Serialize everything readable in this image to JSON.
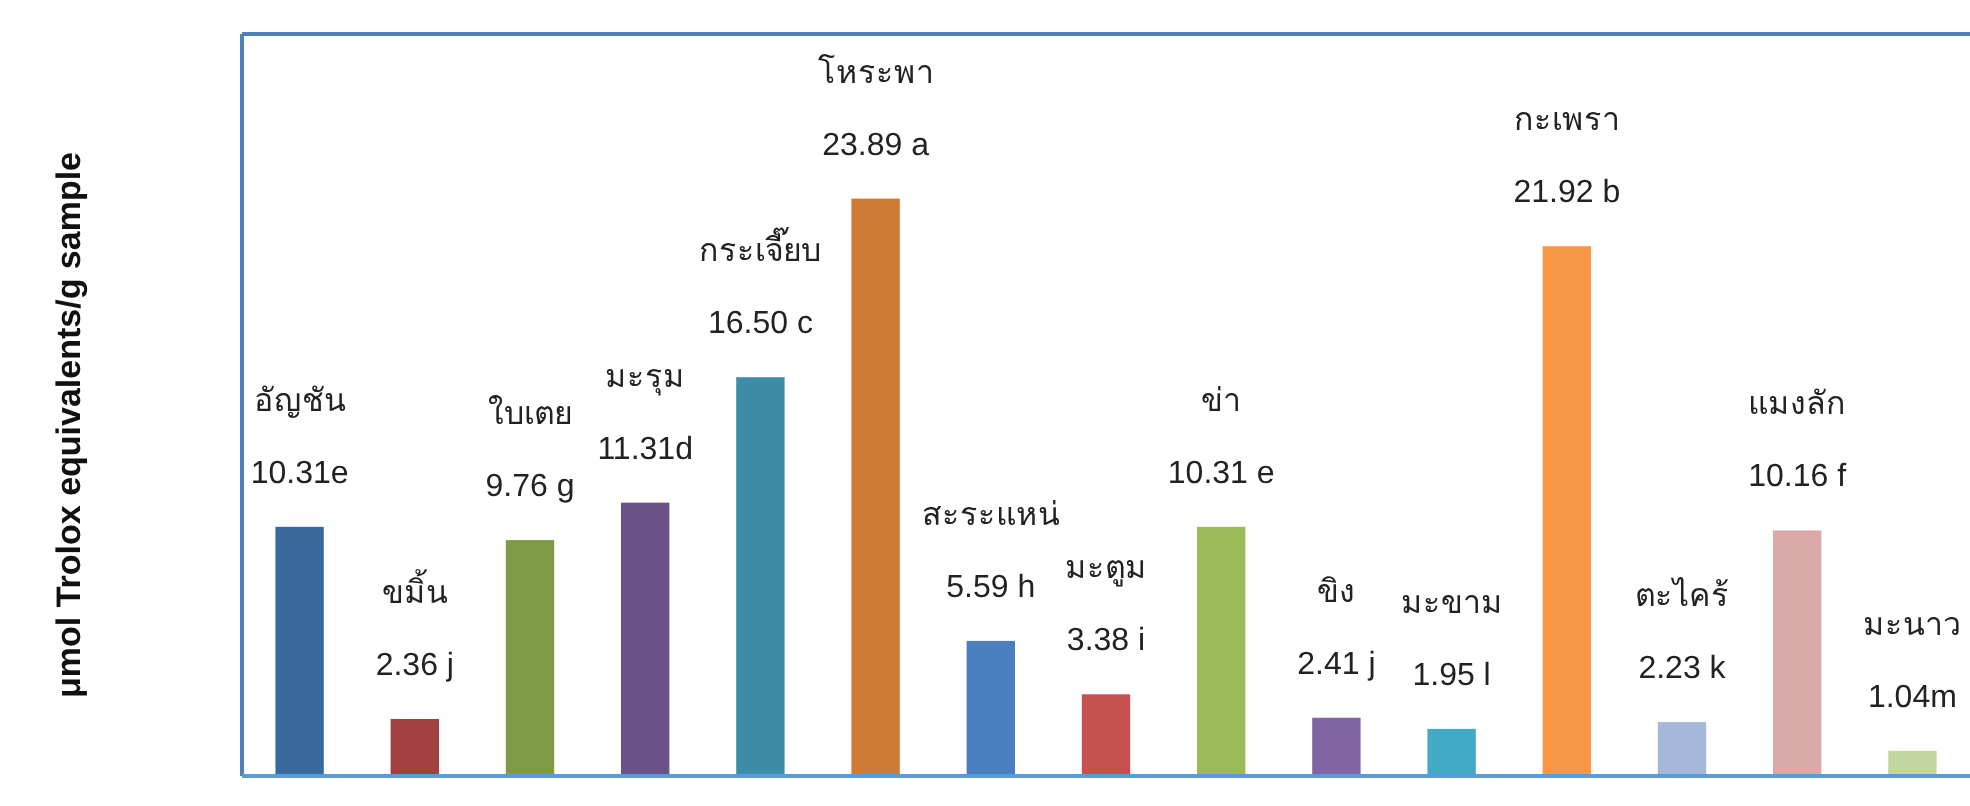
{
  "chart_data": {
    "type": "bar",
    "ylabel": "μmol Trolox equivalents/g sample",
    "categories": [
      "อัญชัน",
      "ขมิ้น",
      "ใบเตย",
      "มะรุม",
      "กระเจี๊ยบ",
      "โหระพา",
      "สะระแหน่",
      "มะตูม",
      "ข่า",
      "ขิง",
      "มะขาม",
      "กะเพรา",
      "ตะไคร้",
      "แมงลัก",
      "มะนาว"
    ],
    "values": [
      10.31,
      2.36,
      9.76,
      11.31,
      16.5,
      23.89,
      5.59,
      3.38,
      10.31,
      2.41,
      1.95,
      21.92,
      2.23,
      10.16,
      1.04
    ],
    "value_labels": [
      "10.31e",
      "2.36 j",
      "9.76 g",
      "11.31d",
      "16.50 c",
      "23.89 a",
      "5.59 h",
      "3.38 i",
      "10.31 e",
      "2.41 j",
      "1.95 l",
      "21.92 b",
      "2.23 k",
      "10.16 f",
      "1.04m"
    ],
    "colors": [
      "#386a9e",
      "#a04040",
      "#7f9a46",
      "#6a5289",
      "#3c8da5",
      "#ce7b37",
      "#4a7fc0",
      "#c5504f",
      "#9bbb59",
      "#8165a3",
      "#43aac6",
      "#f79646",
      "#a6b8d9",
      "#daa9a8",
      "#c3d6a0"
    ],
    "ylim": [
      0,
      30.7
    ],
    "relative": false
  }
}
